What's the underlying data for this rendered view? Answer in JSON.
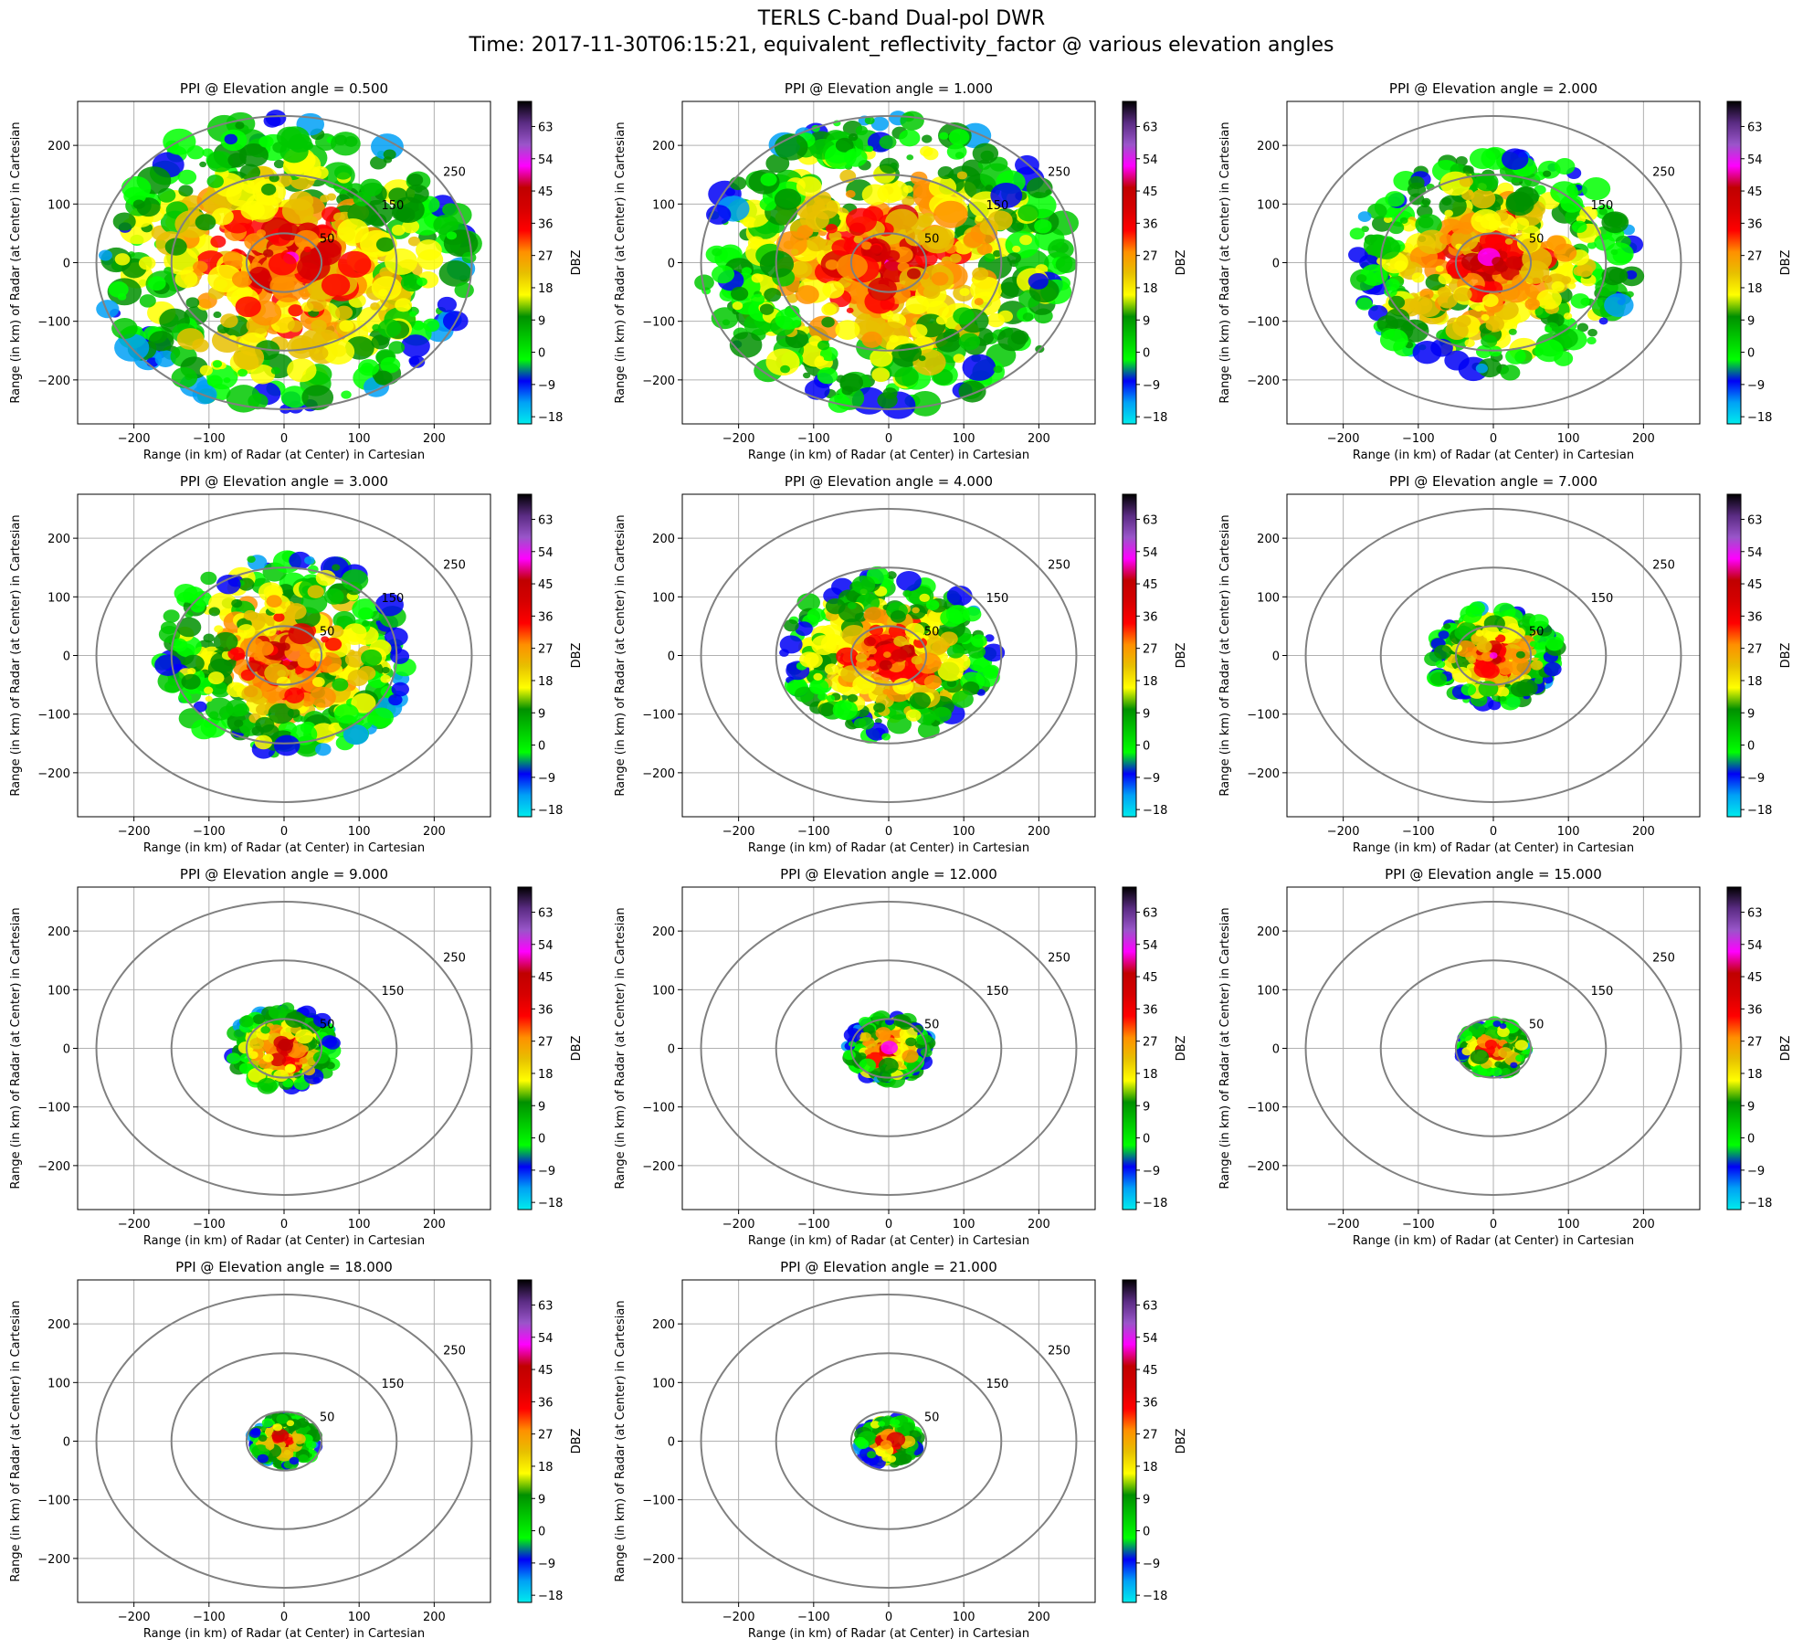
{
  "figure": {
    "title_line1": "TERLS C-band Dual-pol DWR",
    "title_line2": "Time: 2017-11-30T06:15:21, equivalent_reflectivity_factor @ various elevation angles"
  },
  "colors": {
    "ring": "#808080",
    "grid": "#b0b0b0",
    "colormap": [
      "#00ecec",
      "#00a0f6",
      "#0000f6",
      "#00ff00",
      "#00c800",
      "#009000",
      "#ffff00",
      "#e7c000",
      "#ff9000",
      "#ff0000",
      "#d60000",
      "#c00000",
      "#ff00ff",
      "#9955c9",
      "#5b2c84",
      "#000000"
    ]
  },
  "chart_data": [
    {
      "type": "heatmap",
      "title": "PPI @ Elevation angle = 0.500",
      "elevation": 0.5,
      "xlabel": "Range (in km) of Radar (at Center) in Cartesian",
      "ylabel": "Range (in km) of Radar (at Center) in Cartesian",
      "xlim": [
        -275,
        275
      ],
      "ylim": [
        -275,
        275
      ],
      "x_ticks": [
        -200,
        -100,
        0,
        100,
        200
      ],
      "y_ticks": [
        -200,
        -100,
        0,
        100,
        200
      ],
      "range_rings_km": [
        50,
        150,
        250
      ],
      "ring_labels": [
        "50",
        "150",
        "250"
      ],
      "colorbar": {
        "label": "DBZ",
        "ticks": [
          -18,
          -9,
          0,
          9,
          18,
          27,
          36,
          45,
          54,
          63
        ],
        "range": [
          -20,
          70
        ]
      },
      "echo_extent_km": 250,
      "grid": true
    },
    {
      "type": "heatmap",
      "title": "PPI @ Elevation angle = 1.000",
      "elevation": 1.0,
      "xlabel": "Range (in km) of Radar (at Center) in Cartesian",
      "ylabel": "Range (in km) of Radar (at Center) in Cartesian",
      "xlim": [
        -275,
        275
      ],
      "ylim": [
        -275,
        275
      ],
      "x_ticks": [
        -200,
        -100,
        0,
        100,
        200
      ],
      "y_ticks": [
        -200,
        -100,
        0,
        100,
        200
      ],
      "range_rings_km": [
        50,
        150,
        250
      ],
      "ring_labels": [
        "50",
        "150",
        "250"
      ],
      "colorbar": {
        "label": "DBZ",
        "ticks": [
          -18,
          -9,
          0,
          9,
          18,
          27,
          36,
          45,
          54,
          63
        ],
        "range": [
          -20,
          70
        ]
      },
      "echo_extent_km": 250,
      "grid": true
    },
    {
      "type": "heatmap",
      "title": "PPI @ Elevation angle = 2.000",
      "elevation": 2.0,
      "xlabel": "Range (in km) of Radar (at Center) in Cartesian",
      "ylabel": "Range (in km) of Radar (at Center) in Cartesian",
      "xlim": [
        -275,
        275
      ],
      "ylim": [
        -275,
        275
      ],
      "x_ticks": [
        -200,
        -100,
        0,
        100,
        200
      ],
      "y_ticks": [
        -200,
        -100,
        0,
        100,
        200
      ],
      "range_rings_km": [
        50,
        150,
        250
      ],
      "ring_labels": [
        "50",
        "150",
        "250"
      ],
      "colorbar": {
        "label": "DBZ",
        "ticks": [
          -18,
          -9,
          0,
          9,
          18,
          27,
          36,
          45,
          54,
          63
        ],
        "range": [
          -20,
          70
        ]
      },
      "echo_extent_km": 190,
      "grid": true
    },
    {
      "type": "heatmap",
      "title": "PPI @ Elevation angle = 3.000",
      "elevation": 3.0,
      "xlabel": "Range (in km) of Radar (at Center) in Cartesian",
      "ylabel": "Range (in km) of Radar (at Center) in Cartesian",
      "xlim": [
        -275,
        275
      ],
      "ylim": [
        -275,
        275
      ],
      "x_ticks": [
        -200,
        -100,
        0,
        100,
        200
      ],
      "y_ticks": [
        -200,
        -100,
        0,
        100,
        200
      ],
      "range_rings_km": [
        50,
        150,
        250
      ],
      "ring_labels": [
        "50",
        "150",
        "250"
      ],
      "colorbar": {
        "label": "DBZ",
        "ticks": [
          -18,
          -9,
          0,
          9,
          18,
          27,
          36,
          45,
          54,
          63
        ],
        "range": [
          -20,
          70
        ]
      },
      "echo_extent_km": 170,
      "grid": true
    },
    {
      "type": "heatmap",
      "title": "PPI @ Elevation angle = 4.000",
      "elevation": 4.0,
      "xlabel": "Range (in km) of Radar (at Center) in Cartesian",
      "ylabel": "Range (in km) of Radar (at Center) in Cartesian",
      "xlim": [
        -275,
        275
      ],
      "ylim": [
        -275,
        275
      ],
      "x_ticks": [
        -200,
        -100,
        0,
        100,
        200
      ],
      "y_ticks": [
        -200,
        -100,
        0,
        100,
        200
      ],
      "range_rings_km": [
        50,
        150,
        250
      ],
      "ring_labels": [
        "50",
        "150",
        "250"
      ],
      "colorbar": {
        "label": "DBZ",
        "ticks": [
          -18,
          -9,
          0,
          9,
          18,
          27,
          36,
          45,
          54,
          63
        ],
        "range": [
          -20,
          70
        ]
      },
      "echo_extent_km": 140,
      "grid": true
    },
    {
      "type": "heatmap",
      "title": "PPI @ Elevation angle = 7.000",
      "elevation": 7.0,
      "xlabel": "Range (in km) of Radar (at Center) in Cartesian",
      "ylabel": "Range (in km) of Radar (at Center) in Cartesian",
      "xlim": [
        -275,
        275
      ],
      "ylim": [
        -275,
        275
      ],
      "x_ticks": [
        -200,
        -100,
        0,
        100,
        200
      ],
      "y_ticks": [
        -200,
        -100,
        0,
        100,
        200
      ],
      "range_rings_km": [
        50,
        150,
        250
      ],
      "ring_labels": [
        "50",
        "150",
        "250"
      ],
      "colorbar": {
        "label": "DBZ",
        "ticks": [
          -18,
          -9,
          0,
          9,
          18,
          27,
          36,
          45,
          54,
          63
        ],
        "range": [
          -20,
          70
        ]
      },
      "echo_extent_km": 85,
      "grid": true
    },
    {
      "type": "heatmap",
      "title": "PPI @ Elevation angle = 9.000",
      "elevation": 9.0,
      "xlabel": "Range (in km) of Radar (at Center) in Cartesian",
      "ylabel": "Range (in km) of Radar (at Center) in Cartesian",
      "xlim": [
        -275,
        275
      ],
      "ylim": [
        -275,
        275
      ],
      "x_ticks": [
        -200,
        -100,
        0,
        100,
        200
      ],
      "y_ticks": [
        -200,
        -100,
        0,
        100,
        200
      ],
      "range_rings_km": [
        50,
        150,
        250
      ],
      "ring_labels": [
        "50",
        "150",
        "250"
      ],
      "colorbar": {
        "label": "DBZ",
        "ticks": [
          -18,
          -9,
          0,
          9,
          18,
          27,
          36,
          45,
          54,
          63
        ],
        "range": [
          -20,
          70
        ]
      },
      "echo_extent_km": 70,
      "grid": true
    },
    {
      "type": "heatmap",
      "title": "PPI @ Elevation angle = 12.000",
      "elevation": 12.0,
      "xlabel": "Range (in km) of Radar (at Center) in Cartesian",
      "ylabel": "Range (in km) of Radar (at Center) in Cartesian",
      "xlim": [
        -275,
        275
      ],
      "ylim": [
        -275,
        275
      ],
      "x_ticks": [
        -200,
        -100,
        0,
        100,
        200
      ],
      "y_ticks": [
        -200,
        -100,
        0,
        100,
        200
      ],
      "range_rings_km": [
        50,
        150,
        250
      ],
      "ring_labels": [
        "50",
        "150",
        "250"
      ],
      "colorbar": {
        "label": "DBZ",
        "ticks": [
          -18,
          -9,
          0,
          9,
          18,
          27,
          36,
          45,
          54,
          63
        ],
        "range": [
          -20,
          70
        ]
      },
      "echo_extent_km": 55,
      "grid": true
    },
    {
      "type": "heatmap",
      "title": "PPI @ Elevation angle = 15.000",
      "elevation": 15.0,
      "xlabel": "Range (in km) of Radar (at Center) in Cartesian",
      "ylabel": "Range (in km) of Radar (at Center) in Cartesian",
      "xlim": [
        -275,
        275
      ],
      "ylim": [
        -275,
        275
      ],
      "x_ticks": [
        -200,
        -100,
        0,
        100,
        200
      ],
      "y_ticks": [
        -200,
        -100,
        0,
        100,
        200
      ],
      "range_rings_km": [
        50,
        150,
        250
      ],
      "ring_labels": [
        "50",
        "150",
        "250"
      ],
      "colorbar": {
        "label": "DBZ",
        "ticks": [
          -18,
          -9,
          0,
          9,
          18,
          27,
          36,
          45,
          54,
          63
        ],
        "range": [
          -20,
          70
        ]
      },
      "echo_extent_km": 45,
      "grid": true
    },
    {
      "type": "heatmap",
      "title": "PPI @ Elevation angle = 18.000",
      "elevation": 18.0,
      "xlabel": "Range (in km) of Radar (at Center) in Cartesian",
      "ylabel": "Range (in km) of Radar (at Center) in Cartesian",
      "xlim": [
        -275,
        275
      ],
      "ylim": [
        -275,
        275
      ],
      "x_ticks": [
        -200,
        -100,
        0,
        100,
        200
      ],
      "y_ticks": [
        -200,
        -100,
        0,
        100,
        200
      ],
      "range_rings_km": [
        50,
        150,
        250
      ],
      "ring_labels": [
        "50",
        "150",
        "250"
      ],
      "colorbar": {
        "label": "DBZ",
        "ticks": [
          -18,
          -9,
          0,
          9,
          18,
          27,
          36,
          45,
          54,
          63
        ],
        "range": [
          -20,
          70
        ]
      },
      "echo_extent_km": 42,
      "grid": true
    },
    {
      "type": "heatmap",
      "title": "PPI @ Elevation angle = 21.000",
      "elevation": 21.0,
      "xlabel": "Range (in km) of Radar (at Center) in Cartesian",
      "ylabel": "Range (in km) of Radar (at Center) in Cartesian",
      "xlim": [
        -275,
        275
      ],
      "ylim": [
        -275,
        275
      ],
      "x_ticks": [
        -200,
        -100,
        0,
        100,
        200
      ],
      "y_ticks": [
        -200,
        -100,
        0,
        100,
        200
      ],
      "range_rings_km": [
        50,
        150,
        250
      ],
      "ring_labels": [
        "50",
        "150",
        "250"
      ],
      "colorbar": {
        "label": "DBZ",
        "ticks": [
          -18,
          -9,
          0,
          9,
          18,
          27,
          36,
          45,
          54,
          63
        ],
        "range": [
          -20,
          70
        ]
      },
      "echo_extent_km": 40,
      "grid": true
    }
  ]
}
